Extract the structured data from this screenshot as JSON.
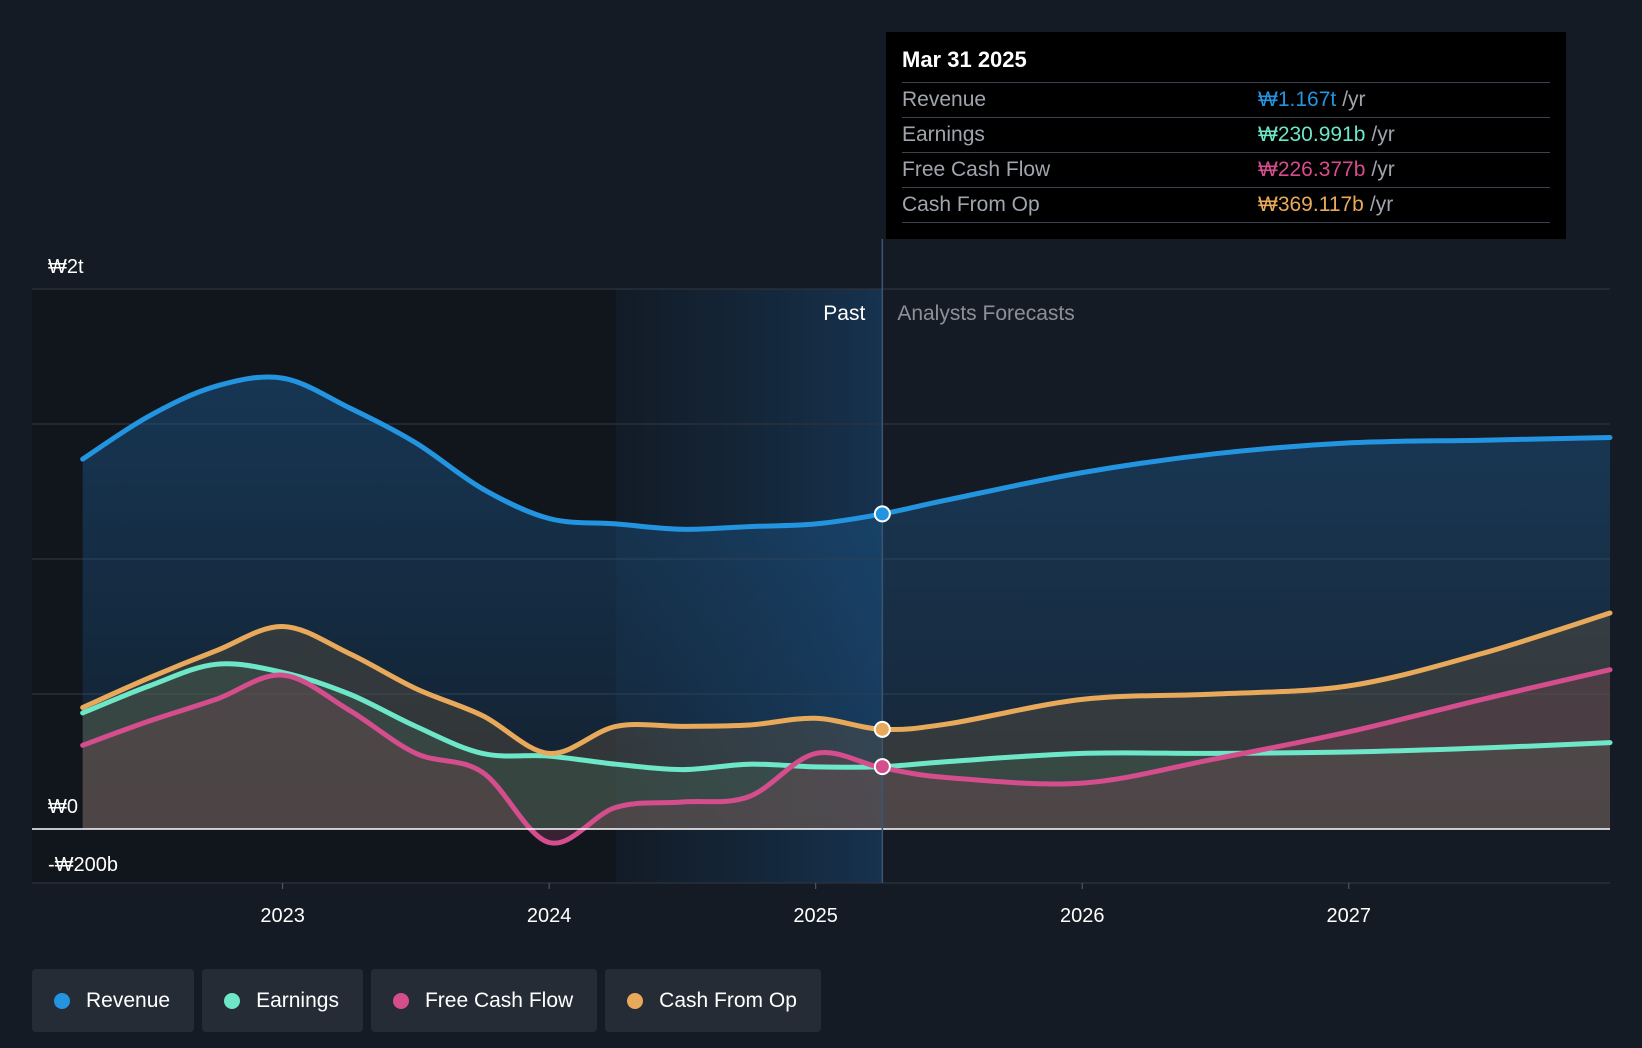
{
  "chart_data": {
    "type": "area",
    "currency_symbol": "₩",
    "y_unit": "billions KRW",
    "ylim": [
      -200,
      2000
    ],
    "y_labels": [
      {
        "value": 2000,
        "label": "₩2t"
      },
      {
        "value": 0,
        "label": "₩0"
      },
      {
        "value": -200,
        "label": "-₩200b"
      }
    ],
    "x_range": [
      2022.3,
      2027.98
    ],
    "x_ticks": [
      {
        "value": 2023,
        "label": "2023"
      },
      {
        "value": 2024,
        "label": "2024"
      },
      {
        "value": 2025,
        "label": "2025"
      },
      {
        "value": 2026,
        "label": "2026"
      },
      {
        "value": 2027,
        "label": "2027"
      }
    ],
    "past_boundary": 2025.25,
    "past_highlight_start": 2024.25,
    "past_label": "Past",
    "forecast_label": "Analysts Forecasts",
    "series": [
      {
        "name": "Revenue",
        "color": "#2394df",
        "points": [
          [
            2022.25,
            1370
          ],
          [
            2022.5,
            1530
          ],
          [
            2022.75,
            1640
          ],
          [
            2023.0,
            1670
          ],
          [
            2023.25,
            1560
          ],
          [
            2023.5,
            1430
          ],
          [
            2023.75,
            1260
          ],
          [
            2024.0,
            1150
          ],
          [
            2024.25,
            1130
          ],
          [
            2024.5,
            1110
          ],
          [
            2024.75,
            1120
          ],
          [
            2025.0,
            1130
          ],
          [
            2025.25,
            1167
          ],
          [
            2025.5,
            1220
          ],
          [
            2026.0,
            1320
          ],
          [
            2026.5,
            1390
          ],
          [
            2027.0,
            1430
          ],
          [
            2027.5,
            1440
          ],
          [
            2027.98,
            1450
          ]
        ]
      },
      {
        "name": "Earnings",
        "color": "#6ee6c8",
        "points": [
          [
            2022.25,
            430
          ],
          [
            2022.5,
            530
          ],
          [
            2022.75,
            610
          ],
          [
            2023.0,
            580
          ],
          [
            2023.25,
            500
          ],
          [
            2023.5,
            380
          ],
          [
            2023.75,
            280
          ],
          [
            2024.0,
            270
          ],
          [
            2024.25,
            240
          ],
          [
            2024.5,
            220
          ],
          [
            2024.75,
            240
          ],
          [
            2025.0,
            230
          ],
          [
            2025.25,
            230.991
          ],
          [
            2025.5,
            250
          ],
          [
            2026.0,
            280
          ],
          [
            2026.5,
            280
          ],
          [
            2027.0,
            285
          ],
          [
            2027.5,
            300
          ],
          [
            2027.98,
            320
          ]
        ]
      },
      {
        "name": "Free Cash Flow",
        "color": "#d44d8c",
        "points": [
          [
            2022.25,
            310
          ],
          [
            2022.5,
            400
          ],
          [
            2022.75,
            480
          ],
          [
            2023.0,
            570
          ],
          [
            2023.25,
            440
          ],
          [
            2023.5,
            280
          ],
          [
            2023.75,
            210
          ],
          [
            2024.0,
            -50
          ],
          [
            2024.25,
            80
          ],
          [
            2024.5,
            100
          ],
          [
            2024.75,
            120
          ],
          [
            2025.0,
            280
          ],
          [
            2025.25,
            226.377
          ],
          [
            2025.5,
            190
          ],
          [
            2026.0,
            170
          ],
          [
            2026.5,
            260
          ],
          [
            2027.0,
            360
          ],
          [
            2027.5,
            480
          ],
          [
            2027.98,
            590
          ]
        ]
      },
      {
        "name": "Cash From Op",
        "color": "#e8aa5a",
        "points": [
          [
            2022.25,
            450
          ],
          [
            2022.5,
            560
          ],
          [
            2022.75,
            660
          ],
          [
            2023.0,
            750
          ],
          [
            2023.25,
            650
          ],
          [
            2023.5,
            520
          ],
          [
            2023.75,
            420
          ],
          [
            2024.0,
            280
          ],
          [
            2024.25,
            380
          ],
          [
            2024.5,
            380
          ],
          [
            2024.75,
            385
          ],
          [
            2025.0,
            410
          ],
          [
            2025.25,
            369.117
          ],
          [
            2025.5,
            390
          ],
          [
            2026.0,
            480
          ],
          [
            2026.5,
            500
          ],
          [
            2027.0,
            530
          ],
          [
            2027.5,
            650
          ],
          [
            2027.98,
            800
          ]
        ]
      }
    ],
    "tooltip": {
      "date": "Mar 31 2025",
      "rows": [
        {
          "name": "Revenue",
          "value": "₩1.167t",
          "unit": "/yr",
          "color": "#2394df"
        },
        {
          "name": "Earnings",
          "value": "₩230.991b",
          "unit": "/yr",
          "color": "#6ee6c8"
        },
        {
          "name": "Free Cash Flow",
          "value": "₩226.377b",
          "unit": "/yr",
          "color": "#d44d8c"
        },
        {
          "name": "Cash From Op",
          "value": "₩369.117b",
          "unit": "/yr",
          "color": "#e8aa5a"
        }
      ]
    }
  },
  "legend": [
    {
      "label": "Revenue",
      "color": "#2394df"
    },
    {
      "label": "Earnings",
      "color": "#6ee6c8"
    },
    {
      "label": "Free Cash Flow",
      "color": "#d44d8c"
    },
    {
      "label": "Cash From Op",
      "color": "#e8aa5a"
    }
  ]
}
